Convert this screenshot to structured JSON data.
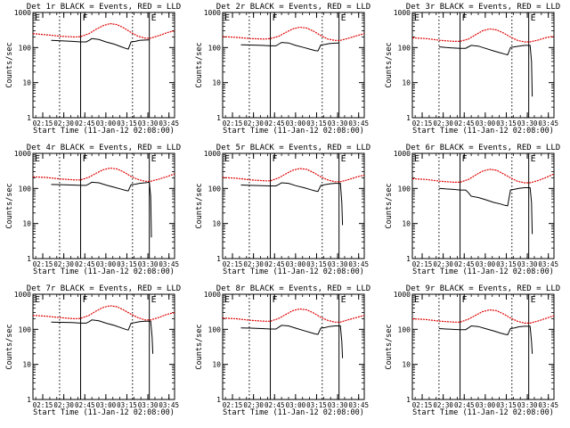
{
  "figure": {
    "start_time_label": "Start Time (11-Jan-12 02:08:00)",
    "y_axis_label": "Counts/sec"
  },
  "chart_data": {
    "type": "line",
    "layout": "3x3 grid",
    "title_template": "Det {det} BLACK = Events, RED = LLD",
    "xlabel": "Start Time (11-Jan-12 02:08:00)",
    "ylabel": "Counts/sec",
    "yscale": "log",
    "ylim": [
      1,
      1000
    ],
    "y_ticks": [
      1,
      10,
      100,
      1000
    ],
    "y_tick_labels": [
      "1",
      "10",
      "100",
      "1000"
    ],
    "x_units": "minutes since 02:08:00",
    "xlim": [
      0,
      101
    ],
    "x_ticks": [
      7,
      22,
      37,
      52,
      67,
      82,
      97
    ],
    "x_tick_labels": [
      "02:15",
      "02:30",
      "02:45",
      "03:00",
      "03:15",
      "03:30",
      "03:45"
    ],
    "dotted_lines_x": [
      19,
      71
    ],
    "solid_lines_x": [
      34,
      83
    ],
    "interval_labels": [
      {
        "text": "E",
        "x": 0
      },
      {
        "text": "F",
        "x": 34
      },
      {
        "text": "E",
        "x": 83
      }
    ],
    "series_colors": {
      "Events": "#000000",
      "LLD": "#e00000"
    },
    "panels": [
      {
        "det": "1r",
        "lld": {
          "x": [
            0,
            10,
            20,
            30,
            34,
            40,
            45,
            50,
            55,
            60,
            65,
            70,
            75,
            80,
            84,
            90,
            96,
            101
          ],
          "y": [
            250,
            230,
            210,
            200,
            205,
            250,
            330,
            420,
            480,
            450,
            360,
            270,
            210,
            185,
            185,
            220,
            270,
            300
          ]
        },
        "events": {
          "x": [
            13,
            20,
            28,
            34,
            38,
            40,
            42,
            47,
            52,
            58,
            63,
            66,
            68,
            70,
            73,
            76,
            82,
            83
          ],
          "y": [
            160,
            155,
            150,
            145,
            145,
            160,
            180,
            170,
            145,
            125,
            105,
            95,
            90,
            145,
            150,
            160,
            165,
            165
          ]
        }
      },
      {
        "det": "2r",
        "lld": {
          "x": [
            0,
            10,
            20,
            30,
            34,
            40,
            45,
            50,
            55,
            60,
            65,
            70,
            75,
            80,
            84,
            90,
            96,
            101
          ],
          "y": [
            205,
            195,
            180,
            175,
            180,
            210,
            270,
            340,
            380,
            360,
            290,
            220,
            175,
            160,
            160,
            185,
            220,
            250
          ]
        },
        "events": {
          "x": [
            13,
            20,
            28,
            34,
            38,
            40,
            42,
            47,
            52,
            58,
            63,
            66,
            68,
            70,
            73,
            76,
            82,
            83
          ],
          "y": [
            120,
            118,
            115,
            112,
            112,
            125,
            140,
            135,
            115,
            100,
            88,
            82,
            80,
            118,
            122,
            130,
            135,
            135
          ]
        }
      },
      {
        "det": "3r",
        "lld": {
          "x": [
            0,
            10,
            20,
            30,
            34,
            40,
            45,
            50,
            55,
            60,
            65,
            70,
            75,
            80,
            84,
            90,
            96,
            101
          ],
          "y": [
            190,
            180,
            160,
            150,
            150,
            175,
            230,
            300,
            340,
            320,
            260,
            200,
            160,
            145,
            145,
            165,
            195,
            210
          ]
        },
        "events": {
          "x": [
            19,
            24,
            28,
            34,
            38,
            40,
            42,
            47,
            52,
            58,
            63,
            66,
            68,
            70,
            73,
            76,
            80,
            84,
            85,
            85.5
          ],
          "y": [
            105,
            100,
            98,
            95,
            95,
            105,
            115,
            110,
            95,
            80,
            70,
            65,
            62,
            100,
            105,
            110,
            115,
            115,
            40,
            4
          ]
        }
      },
      {
        "det": "4r",
        "lld": {
          "x": [
            0,
            10,
            20,
            30,
            34,
            40,
            45,
            50,
            55,
            60,
            65,
            70,
            75,
            80,
            84,
            90,
            96,
            101
          ],
          "y": [
            215,
            205,
            185,
            175,
            175,
            210,
            270,
            340,
            380,
            360,
            290,
            220,
            180,
            160,
            160,
            185,
            220,
            260
          ]
        },
        "events": {
          "x": [
            13,
            20,
            28,
            34,
            38,
            40,
            42,
            47,
            52,
            58,
            63,
            66,
            68,
            70,
            73,
            76,
            80,
            83,
            84,
            84.5
          ],
          "y": [
            130,
            128,
            125,
            122,
            122,
            135,
            150,
            145,
            125,
            108,
            95,
            88,
            85,
            128,
            132,
            140,
            145,
            150,
            60,
            4
          ]
        }
      },
      {
        "det": "5r",
        "lld": {
          "x": [
            0,
            10,
            20,
            30,
            34,
            40,
            45,
            50,
            55,
            60,
            65,
            70,
            75,
            80,
            84,
            90,
            96,
            101
          ],
          "y": [
            205,
            195,
            175,
            165,
            165,
            200,
            260,
            330,
            370,
            350,
            280,
            215,
            175,
            155,
            155,
            180,
            215,
            240
          ]
        },
        "events": {
          "x": [
            13,
            20,
            28,
            34,
            38,
            40,
            42,
            47,
            52,
            58,
            63,
            66,
            68,
            70,
            73,
            76,
            80,
            84,
            85,
            85.5
          ],
          "y": [
            125,
            122,
            120,
            118,
            118,
            130,
            145,
            140,
            120,
            105,
            92,
            85,
            82,
            122,
            128,
            135,
            140,
            140,
            40,
            9
          ]
        }
      },
      {
        "det": "6r",
        "lld": {
          "x": [
            0,
            10,
            20,
            30,
            34,
            40,
            45,
            50,
            55,
            60,
            65,
            70,
            75,
            80,
            84,
            90,
            96,
            101
          ],
          "y": [
            190,
            180,
            160,
            150,
            150,
            180,
            240,
            310,
            350,
            330,
            260,
            200,
            160,
            145,
            145,
            170,
            210,
            260
          ]
        },
        "events": {
          "x": [
            19,
            24,
            28,
            34,
            38,
            40,
            42,
            47,
            52,
            58,
            63,
            66,
            68,
            70,
            73,
            76,
            80,
            84,
            85,
            85.5
          ],
          "y": [
            100,
            97,
            95,
            90,
            90,
            75,
            60,
            55,
            48,
            40,
            36,
            33,
            32,
            90,
            95,
            100,
            105,
            105,
            40,
            5
          ]
        }
      },
      {
        "det": "7r",
        "lld": {
          "x": [
            0,
            10,
            20,
            30,
            34,
            40,
            45,
            50,
            55,
            60,
            65,
            70,
            75,
            80,
            84,
            90,
            96,
            101
          ],
          "y": [
            250,
            235,
            215,
            200,
            205,
            250,
            330,
            420,
            470,
            440,
            350,
            270,
            215,
            185,
            185,
            220,
            270,
            300
          ]
        },
        "events": {
          "x": [
            13,
            20,
            28,
            34,
            38,
            40,
            42,
            47,
            52,
            58,
            63,
            66,
            68,
            70,
            73,
            76,
            80,
            84,
            85,
            85.5
          ],
          "y": [
            160,
            158,
            155,
            150,
            150,
            165,
            185,
            175,
            150,
            130,
            110,
            100,
            95,
            150,
            155,
            165,
            170,
            170,
            60,
            20
          ]
        }
      },
      {
        "det": "8r",
        "lld": {
          "x": [
            0,
            10,
            20,
            30,
            34,
            40,
            45,
            50,
            55,
            60,
            65,
            70,
            75,
            80,
            84,
            90,
            96,
            101
          ],
          "y": [
            210,
            200,
            180,
            170,
            170,
            205,
            265,
            340,
            380,
            360,
            290,
            220,
            180,
            160,
            160,
            190,
            220,
            250
          ]
        },
        "events": {
          "x": [
            13,
            20,
            28,
            34,
            38,
            40,
            42,
            47,
            52,
            58,
            63,
            66,
            68,
            70,
            73,
            76,
            80,
            84,
            85,
            85.5
          ],
          "y": [
            110,
            108,
            105,
            102,
            102,
            115,
            130,
            125,
            108,
            92,
            80,
            74,
            72,
            108,
            112,
            120,
            125,
            125,
            45,
            15
          ]
        }
      },
      {
        "det": "9r",
        "lld": {
          "x": [
            0,
            10,
            20,
            30,
            34,
            40,
            45,
            50,
            55,
            60,
            65,
            70,
            75,
            80,
            84,
            90,
            96,
            101
          ],
          "y": [
            200,
            190,
            170,
            160,
            160,
            195,
            250,
            320,
            360,
            340,
            275,
            210,
            170,
            150,
            150,
            175,
            210,
            245
          ]
        },
        "events": {
          "x": [
            19,
            24,
            28,
            34,
            38,
            40,
            42,
            47,
            52,
            58,
            63,
            66,
            68,
            70,
            73,
            76,
            80,
            84,
            85,
            85.5
          ],
          "y": [
            105,
            102,
            100,
            98,
            98,
            110,
            125,
            120,
            105,
            90,
            78,
            72,
            70,
            105,
            110,
            118,
            122,
            122,
            45,
            20
          ]
        }
      }
    ]
  }
}
